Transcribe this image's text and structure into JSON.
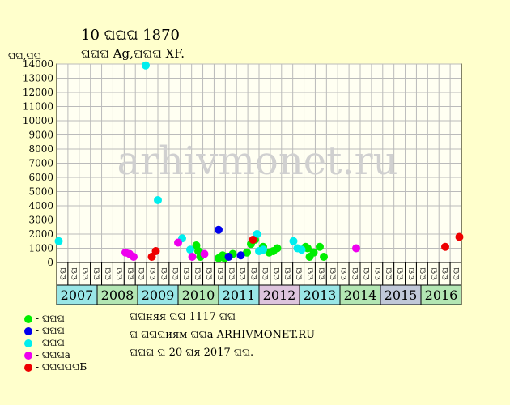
{
  "header": {
    "title": "10 ଘଘଘ 1870",
    "subtitle": "ଘଘଘ Ag,ଘଘଘ XF.",
    "y_unit": "ଘଘ,ଘଘ"
  },
  "watermark": "arhivmonet.ru",
  "colors": {
    "background": "#ffffcc",
    "plot_bg": "#fffff2",
    "grid": "#bbbbbb",
    "year_cyan": "#99e6e6",
    "year_green": "#b3e6b3",
    "year_pink": "#ddc4dd",
    "year_grey": "#c0c8d8",
    "watermark": "#d0d0d0"
  },
  "chart_data": {
    "type": "scatter",
    "ylim": [
      0,
      14000
    ],
    "y_ticks": [
      0,
      1000,
      2000,
      3000,
      4000,
      5000,
      6000,
      7000,
      8000,
      9000,
      10000,
      11000,
      12000,
      13000,
      14000
    ],
    "grid": true,
    "quarter_labels": [
      "ଘଘ",
      "ଘଘ",
      "ଘଘ",
      "ଘଘ",
      "ଘଘ",
      "ଘଘ",
      "ଘଘ",
      "ଘଘ",
      "ଘଘ",
      "ଘଘ",
      "ଘଘ",
      "ଘଘ",
      "ଘଘ",
      "ଘଘ",
      "ଘଘ",
      "ଘଘ",
      "ଘଘ",
      "ଘଘ",
      "ଘଘ",
      "ଘଘ",
      "ଘଘ",
      "ଘଘ",
      "ଘଘ",
      "ଘଘ",
      "ଘଘ",
      "ଘଘ",
      "ଘଘ",
      "ଘଘ",
      "ଘଘ",
      "ଘଘ",
      "ଘଘ",
      "ଘଘ",
      "ଘଘ",
      "ଘଘ",
      "ଘଘ",
      "ଘଘ"
    ],
    "years": [
      {
        "label": "2007",
        "color": "#99e6e6"
      },
      {
        "label": "2008",
        "color": "#b3e6b3"
      },
      {
        "label": "2009",
        "color": "#99e6e6"
      },
      {
        "label": "2010",
        "color": "#b3e6b3"
      },
      {
        "label": "2011",
        "color": "#99e6e6"
      },
      {
        "label": "2012",
        "color": "#ddc4dd"
      },
      {
        "label": "2013",
        "color": "#99e6e6"
      },
      {
        "label": "2014",
        "color": "#b3e6b3"
      },
      {
        "label": "2015",
        "color": "#c0c8d8"
      },
      {
        "label": "2016",
        "color": "#b3e6b3"
      }
    ],
    "series": [
      {
        "name": "ଘଘଘ",
        "color": "#00ee00",
        "points": [
          [
            2010.45,
            1200
          ],
          [
            2010.5,
            800
          ],
          [
            2010.55,
            400
          ],
          [
            2010.6,
            600
          ],
          [
            2011.0,
            300
          ],
          [
            2011.1,
            500
          ],
          [
            2011.15,
            300
          ],
          [
            2011.2,
            400
          ],
          [
            2011.35,
            600
          ],
          [
            2011.7,
            700
          ],
          [
            2011.8,
            1300
          ],
          [
            2011.9,
            1600
          ],
          [
            2012.1,
            1100
          ],
          [
            2012.25,
            700
          ],
          [
            2012.35,
            800
          ],
          [
            2012.45,
            1000
          ],
          [
            2013.15,
            1100
          ],
          [
            2013.2,
            1000
          ],
          [
            2013.25,
            400
          ],
          [
            2013.35,
            700
          ],
          [
            2013.5,
            1100
          ],
          [
            2013.6,
            400
          ]
        ]
      },
      {
        "name": "ଘଘଘ",
        "color": "#0000ee",
        "points": [
          [
            2011.0,
            2300
          ],
          [
            2011.25,
            400
          ],
          [
            2011.55,
            500
          ]
        ]
      },
      {
        "name": "ଘଘଘ",
        "color": "#00eeee",
        "points": [
          [
            2007.05,
            1500
          ],
          [
            2009.2,
            13900
          ],
          [
            2009.5,
            4400
          ],
          [
            2010.1,
            1700
          ],
          [
            2010.3,
            900
          ],
          [
            2011.95,
            2000
          ],
          [
            2012.0,
            800
          ],
          [
            2012.1,
            900
          ],
          [
            2012.85,
            1500
          ],
          [
            2012.95,
            1000
          ],
          [
            2013.05,
            900
          ]
        ]
      },
      {
        "name": "ଘଘଘa",
        "color": "#ee00ee",
        "points": [
          [
            2008.7,
            700
          ],
          [
            2008.8,
            600
          ],
          [
            2008.9,
            400
          ],
          [
            2010.0,
            1400
          ],
          [
            2010.35,
            400
          ],
          [
            2010.65,
            600
          ],
          [
            2014.4,
            1000
          ]
        ]
      },
      {
        "name": "ଘଘଘଘଘБ",
        "color": "#ee0000",
        "points": [
          [
            2009.35,
            400
          ],
          [
            2009.45,
            800
          ],
          [
            2011.85,
            1600
          ],
          [
            2016.6,
            1100
          ],
          [
            2016.95,
            1800
          ]
        ]
      }
    ]
  },
  "info": {
    "line1": "ଘଘняя ଘଘ 1117 ଘଘ",
    "line2": "ଘ ଘଘଘиям ଘଘa ARHIVMONET.RU",
    "line3": "ଘଘଘ ଘ 20 ଘя 2017 ଘଘ."
  }
}
